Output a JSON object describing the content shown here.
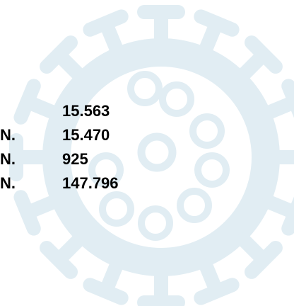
{
  "rows": [
    {
      "value": "15.563"
    },
    {
      "label": "N.",
      "value": "15.470"
    },
    {
      "label": "N.",
      "value": "925"
    },
    {
      "label": "N.",
      "value": "147.796"
    }
  ]
}
